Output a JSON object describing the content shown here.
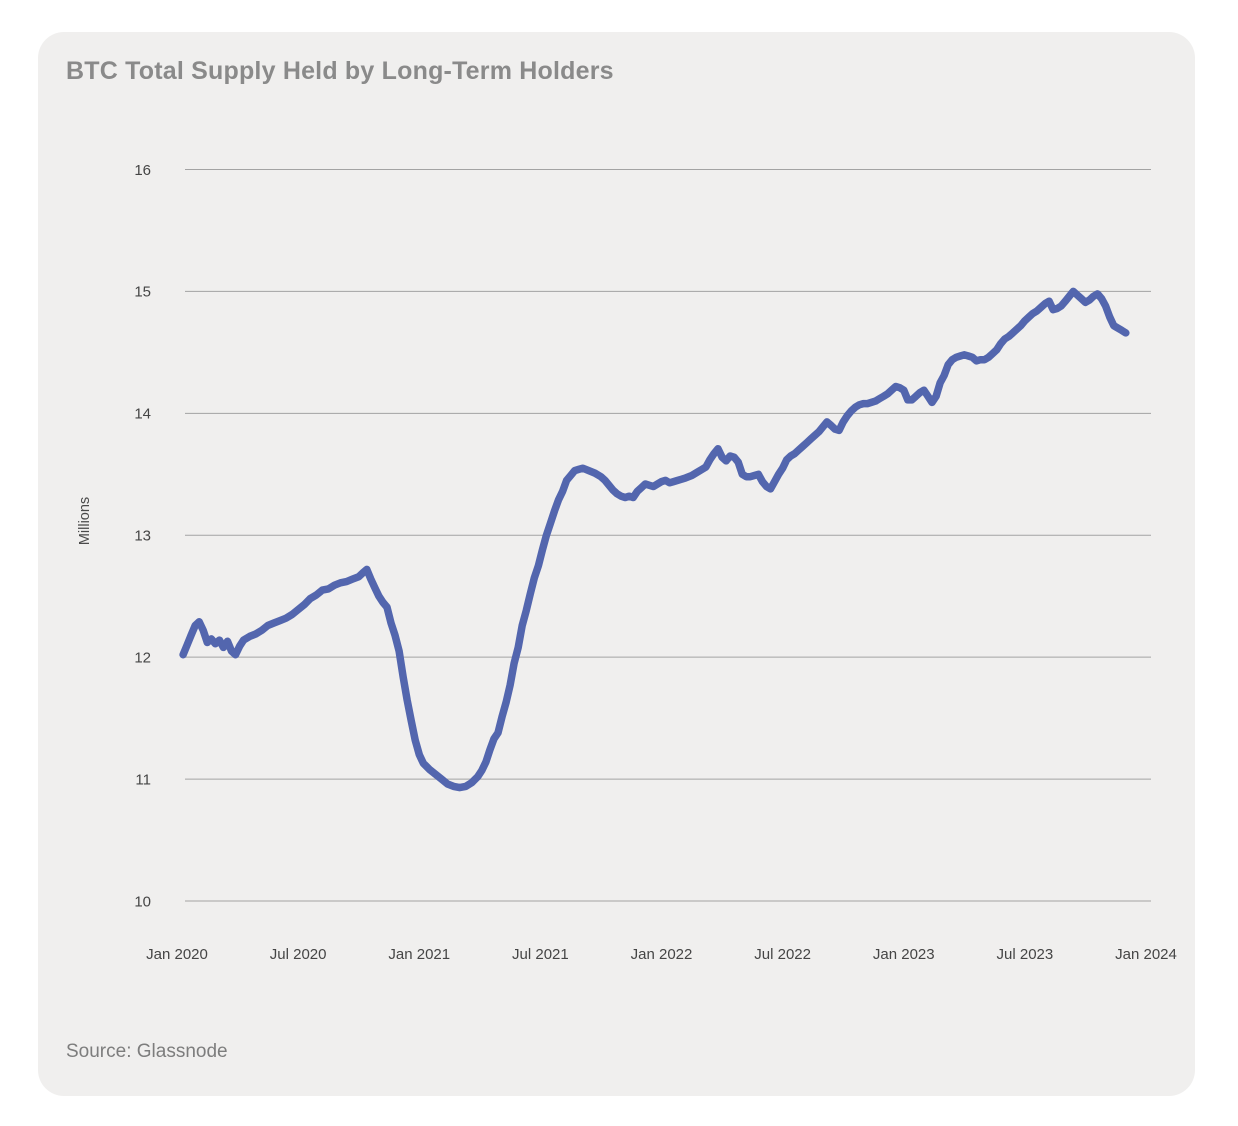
{
  "chart_data": {
    "type": "line",
    "title": "BTC Total Supply Held by Long-Term Holders",
    "source": "Source: Glassnode",
    "xlabel": "",
    "ylabel": "Millions",
    "ylim": [
      10,
      16
    ],
    "yticks": [
      16,
      15,
      14,
      13,
      12,
      11,
      10
    ],
    "ytick_labels": [
      "16",
      "15",
      "14",
      "13",
      "12",
      "11",
      "10"
    ],
    "xtick_labels": [
      "Jan 2020",
      "Jul 2020",
      "Jan 2021",
      "Jul 2021",
      "Jan 2022",
      "Jul 2022",
      "Jan 2023",
      "Jul 2023",
      "Jan 2024"
    ],
    "xtick_months_since_jan2020": [
      0,
      6,
      12,
      18,
      24,
      30,
      36,
      42,
      48
    ],
    "grid": "horizontal",
    "legend": "none",
    "line_color": "#5366ae",
    "grid_color": "#a3a3a3",
    "card_background": "#f0efee",
    "tick_label_color": "#454545",
    "title_color": "#8a8a8a",
    "series": [
      {
        "name": "BTC total supply held by long-term holders (millions of BTC)",
        "x_unit": "months since Jan 2020",
        "points": [
          [
            0.3,
            12.02
          ],
          [
            0.5,
            12.1
          ],
          [
            0.7,
            12.18
          ],
          [
            0.9,
            12.26
          ],
          [
            1.1,
            12.29
          ],
          [
            1.3,
            12.22
          ],
          [
            1.5,
            12.12
          ],
          [
            1.7,
            12.15
          ],
          [
            1.9,
            12.11
          ],
          [
            2.1,
            12.14
          ],
          [
            2.3,
            12.08
          ],
          [
            2.5,
            12.13
          ],
          [
            2.7,
            12.05
          ],
          [
            2.9,
            12.02
          ],
          [
            3.1,
            12.09
          ],
          [
            3.3,
            12.14
          ],
          [
            3.6,
            12.17
          ],
          [
            3.9,
            12.19
          ],
          [
            4.2,
            12.22
          ],
          [
            4.5,
            12.26
          ],
          [
            4.8,
            12.28
          ],
          [
            5.1,
            12.3
          ],
          [
            5.4,
            12.32
          ],
          [
            5.7,
            12.35
          ],
          [
            6.0,
            12.39
          ],
          [
            6.3,
            12.43
          ],
          [
            6.6,
            12.48
          ],
          [
            6.9,
            12.51
          ],
          [
            7.2,
            12.55
          ],
          [
            7.5,
            12.56
          ],
          [
            7.8,
            12.59
          ],
          [
            8.1,
            12.61
          ],
          [
            8.4,
            12.62
          ],
          [
            8.7,
            12.64
          ],
          [
            9.0,
            12.66
          ],
          [
            9.2,
            12.69
          ],
          [
            9.4,
            12.72
          ],
          [
            9.6,
            12.64
          ],
          [
            9.8,
            12.57
          ],
          [
            10.0,
            12.5
          ],
          [
            10.2,
            12.45
          ],
          [
            10.4,
            12.41
          ],
          [
            10.6,
            12.28
          ],
          [
            10.8,
            12.18
          ],
          [
            11.0,
            12.05
          ],
          [
            11.2,
            11.84
          ],
          [
            11.4,
            11.65
          ],
          [
            11.6,
            11.48
          ],
          [
            11.8,
            11.32
          ],
          [
            12.0,
            11.2
          ],
          [
            12.2,
            11.13
          ],
          [
            12.5,
            11.08
          ],
          [
            12.8,
            11.04
          ],
          [
            13.1,
            11.0
          ],
          [
            13.4,
            10.96
          ],
          [
            13.7,
            10.94
          ],
          [
            14.0,
            10.93
          ],
          [
            14.3,
            10.94
          ],
          [
            14.6,
            10.97
          ],
          [
            14.9,
            11.02
          ],
          [
            15.1,
            11.07
          ],
          [
            15.3,
            11.14
          ],
          [
            15.5,
            11.24
          ],
          [
            15.7,
            11.33
          ],
          [
            15.9,
            11.38
          ],
          [
            16.1,
            11.51
          ],
          [
            16.3,
            11.63
          ],
          [
            16.5,
            11.77
          ],
          [
            16.7,
            11.95
          ],
          [
            16.9,
            12.08
          ],
          [
            17.1,
            12.26
          ],
          [
            17.3,
            12.38
          ],
          [
            17.5,
            12.52
          ],
          [
            17.7,
            12.65
          ],
          [
            17.9,
            12.75
          ],
          [
            18.1,
            12.88
          ],
          [
            18.3,
            13.0
          ],
          [
            18.5,
            13.1
          ],
          [
            18.7,
            13.2
          ],
          [
            18.9,
            13.29
          ],
          [
            19.1,
            13.36
          ],
          [
            19.3,
            13.45
          ],
          [
            19.5,
            13.49
          ],
          [
            19.7,
            13.53
          ],
          [
            19.9,
            13.54
          ],
          [
            20.1,
            13.55
          ],
          [
            20.4,
            13.53
          ],
          [
            20.7,
            13.51
          ],
          [
            21.0,
            13.48
          ],
          [
            21.2,
            13.45
          ],
          [
            21.4,
            13.41
          ],
          [
            21.6,
            13.37
          ],
          [
            21.8,
            13.34
          ],
          [
            22.0,
            13.32
          ],
          [
            22.2,
            13.31
          ],
          [
            22.4,
            13.32
          ],
          [
            22.6,
            13.31
          ],
          [
            22.8,
            13.36
          ],
          [
            23.0,
            13.39
          ],
          [
            23.2,
            13.42
          ],
          [
            23.4,
            13.41
          ],
          [
            23.6,
            13.4
          ],
          [
            23.8,
            13.42
          ],
          [
            24.0,
            13.44
          ],
          [
            24.2,
            13.45
          ],
          [
            24.4,
            13.43
          ],
          [
            24.6,
            13.44
          ],
          [
            24.8,
            13.45
          ],
          [
            25.0,
            13.46
          ],
          [
            25.2,
            13.47
          ],
          [
            25.5,
            13.49
          ],
          [
            25.8,
            13.52
          ],
          [
            26.0,
            13.54
          ],
          [
            26.2,
            13.56
          ],
          [
            26.4,
            13.62
          ],
          [
            26.6,
            13.67
          ],
          [
            26.8,
            13.71
          ],
          [
            27.0,
            13.64
          ],
          [
            27.2,
            13.61
          ],
          [
            27.4,
            13.65
          ],
          [
            27.6,
            13.64
          ],
          [
            27.8,
            13.6
          ],
          [
            28.0,
            13.5
          ],
          [
            28.2,
            13.48
          ],
          [
            28.4,
            13.48
          ],
          [
            28.6,
            13.49
          ],
          [
            28.8,
            13.5
          ],
          [
            29.0,
            13.44
          ],
          [
            29.2,
            13.4
          ],
          [
            29.4,
            13.38
          ],
          [
            29.6,
            13.44
          ],
          [
            29.8,
            13.5
          ],
          [
            30.0,
            13.55
          ],
          [
            30.2,
            13.62
          ],
          [
            30.4,
            13.65
          ],
          [
            30.6,
            13.67
          ],
          [
            30.8,
            13.7
          ],
          [
            31.0,
            13.73
          ],
          [
            31.2,
            13.76
          ],
          [
            31.4,
            13.79
          ],
          [
            31.6,
            13.82
          ],
          [
            31.8,
            13.85
          ],
          [
            32.0,
            13.89
          ],
          [
            32.2,
            13.93
          ],
          [
            32.4,
            13.9
          ],
          [
            32.6,
            13.87
          ],
          [
            32.8,
            13.86
          ],
          [
            33.0,
            13.93
          ],
          [
            33.2,
            13.98
          ],
          [
            33.4,
            14.02
          ],
          [
            33.6,
            14.05
          ],
          [
            33.8,
            14.07
          ],
          [
            34.0,
            14.08
          ],
          [
            34.2,
            14.08
          ],
          [
            34.4,
            14.09
          ],
          [
            34.6,
            14.1
          ],
          [
            34.8,
            14.12
          ],
          [
            35.0,
            14.14
          ],
          [
            35.2,
            14.16
          ],
          [
            35.4,
            14.19
          ],
          [
            35.6,
            14.22
          ],
          [
            35.8,
            14.21
          ],
          [
            36.0,
            14.19
          ],
          [
            36.2,
            14.11
          ],
          [
            36.4,
            14.11
          ],
          [
            36.6,
            14.14
          ],
          [
            36.8,
            14.17
          ],
          [
            37.0,
            14.19
          ],
          [
            37.2,
            14.14
          ],
          [
            37.4,
            14.09
          ],
          [
            37.6,
            14.14
          ],
          [
            37.8,
            14.25
          ],
          [
            38.0,
            14.31
          ],
          [
            38.2,
            14.4
          ],
          [
            38.4,
            14.44
          ],
          [
            38.6,
            14.46
          ],
          [
            38.8,
            14.47
          ],
          [
            39.0,
            14.48
          ],
          [
            39.2,
            14.47
          ],
          [
            39.4,
            14.46
          ],
          [
            39.6,
            14.43
          ],
          [
            39.8,
            14.44
          ],
          [
            40.0,
            14.44
          ],
          [
            40.2,
            14.46
          ],
          [
            40.4,
            14.49
          ],
          [
            40.6,
            14.52
          ],
          [
            40.8,
            14.57
          ],
          [
            41.0,
            14.61
          ],
          [
            41.2,
            14.63
          ],
          [
            41.4,
            14.66
          ],
          [
            41.6,
            14.69
          ],
          [
            41.8,
            14.72
          ],
          [
            42.0,
            14.76
          ],
          [
            42.2,
            14.79
          ],
          [
            42.4,
            14.82
          ],
          [
            42.6,
            14.84
          ],
          [
            42.8,
            14.87
          ],
          [
            43.0,
            14.9
          ],
          [
            43.2,
            14.92
          ],
          [
            43.4,
            14.85
          ],
          [
            43.6,
            14.86
          ],
          [
            43.8,
            14.88
          ],
          [
            44.0,
            14.92
          ],
          [
            44.2,
            14.96
          ],
          [
            44.4,
            15.0
          ],
          [
            44.6,
            14.97
          ],
          [
            44.8,
            14.94
          ],
          [
            45.0,
            14.91
          ],
          [
            45.2,
            14.93
          ],
          [
            45.4,
            14.96
          ],
          [
            45.6,
            14.98
          ],
          [
            45.8,
            14.94
          ],
          [
            46.0,
            14.88
          ],
          [
            46.2,
            14.79
          ],
          [
            46.4,
            14.72
          ],
          [
            46.6,
            14.7
          ],
          [
            46.8,
            14.68
          ],
          [
            47.0,
            14.66
          ]
        ]
      }
    ]
  }
}
